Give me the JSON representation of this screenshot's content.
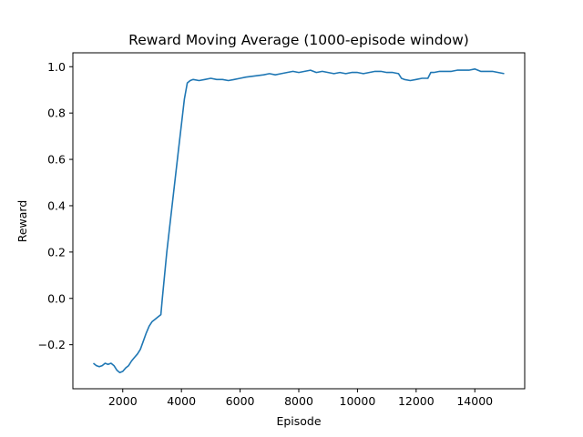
{
  "chart_data": {
    "type": "line",
    "title": "Reward Moving Average (1000-episode window)",
    "xlabel": "Episode",
    "ylabel": "Reward",
    "xlim": [
      300,
      15700
    ],
    "ylim": [
      -0.39,
      1.06
    ],
    "xticks": [
      2000,
      4000,
      6000,
      8000,
      10000,
      12000,
      14000
    ],
    "xtick_labels": [
      "2000",
      "4000",
      "6000",
      "8000",
      "10000",
      "12000",
      "14000"
    ],
    "yticks": [
      -0.2,
      0.0,
      0.2,
      0.4,
      0.6,
      0.8,
      1.0
    ],
    "ytick_labels": [
      "−0.2",
      "0.0",
      "0.2",
      "0.4",
      "0.6",
      "0.8",
      "1.0"
    ],
    "grid": false,
    "color": "#1f77b4",
    "series": [
      {
        "x": [
          1000,
          1100,
          1200,
          1300,
          1400,
          1500,
          1600,
          1700,
          1800,
          1900,
          2000,
          2100,
          2200,
          2300,
          2400,
          2500,
          2600,
          2700,
          2800,
          2900,
          3000,
          3100,
          3200,
          3300,
          3350,
          3500,
          3700,
          3900,
          4100,
          4200,
          4300,
          4400,
          4600,
          4800,
          5000,
          5200,
          5400,
          5600,
          5800,
          6000,
          6200,
          6500,
          6800,
          7000,
          7200,
          7400,
          7600,
          7800,
          8000,
          8200,
          8400,
          8600,
          8800,
          9000,
          9200,
          9400,
          9600,
          9800,
          10000,
          10200,
          10400,
          10600,
          10800,
          11000,
          11200,
          11400,
          11500,
          11600,
          11800,
          12000,
          12200,
          12400,
          12500,
          12600,
          12800,
          13000,
          13200,
          13400,
          13600,
          13800,
          14000,
          14200,
          14400,
          14600,
          14800,
          15000
        ],
        "y": [
          -0.28,
          -0.29,
          -0.295,
          -0.29,
          -0.28,
          -0.285,
          -0.28,
          -0.29,
          -0.31,
          -0.32,
          -0.315,
          -0.3,
          -0.29,
          -0.27,
          -0.255,
          -0.24,
          -0.22,
          -0.185,
          -0.15,
          -0.12,
          -0.1,
          -0.09,
          -0.08,
          -0.07,
          0.0,
          0.2,
          0.42,
          0.64,
          0.86,
          0.93,
          0.94,
          0.945,
          0.94,
          0.945,
          0.95,
          0.945,
          0.945,
          0.94,
          0.945,
          0.95,
          0.955,
          0.96,
          0.965,
          0.97,
          0.965,
          0.97,
          0.975,
          0.98,
          0.975,
          0.98,
          0.985,
          0.975,
          0.98,
          0.975,
          0.97,
          0.975,
          0.97,
          0.975,
          0.975,
          0.97,
          0.975,
          0.98,
          0.98,
          0.975,
          0.975,
          0.97,
          0.95,
          0.945,
          0.94,
          0.945,
          0.95,
          0.95,
          0.975,
          0.975,
          0.98,
          0.98,
          0.98,
          0.985,
          0.985,
          0.985,
          0.99,
          0.98,
          0.98,
          0.98,
          0.975,
          0.97
        ]
      }
    ]
  }
}
